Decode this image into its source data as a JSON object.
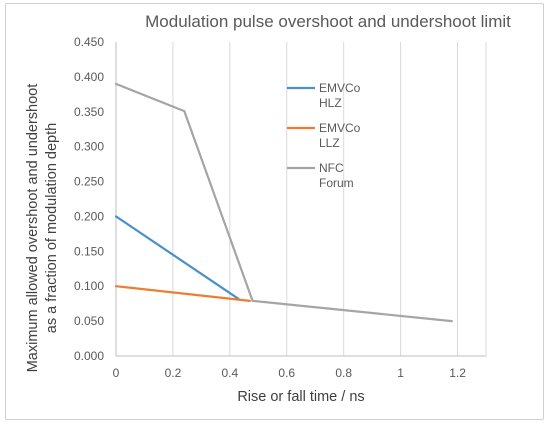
{
  "chart_data": {
    "type": "line",
    "title": "Modulation pulse overshoot and undershoot limit",
    "xlabel": "Rise or fall time / ns",
    "ylabel_lines": [
      "Maximum allowed overshoot and undershoot",
      "as a fraction of modulation depth"
    ],
    "xlim": [
      0,
      1.3
    ],
    "ylim": [
      0,
      0.45
    ],
    "x_ticks": [
      "0",
      "0.2",
      "0.4",
      "0.6",
      "0.8",
      "1",
      "1.2"
    ],
    "y_ticks": [
      "0.000",
      "0.050",
      "0.100",
      "0.150",
      "0.200",
      "0.250",
      "0.300",
      "0.350",
      "0.400",
      "0.450"
    ],
    "grid": "vertical",
    "legend_position": "right-inside",
    "series": [
      {
        "name": "EMVCo HLZ",
        "legend_lines": [
          "EMVCo",
          "HLZ"
        ],
        "color": "#4a90c8",
        "points": [
          [
            0,
            0.2
          ],
          [
            0.43,
            0.082
          ]
        ]
      },
      {
        "name": "EMVCo LLZ",
        "legend_lines": [
          "EMVCo",
          "LLZ"
        ],
        "color": "#ed7d31",
        "points": [
          [
            0,
            0.1
          ],
          [
            0.47,
            0.079
          ]
        ]
      },
      {
        "name": "NFC Forum",
        "legend_lines": [
          "NFC",
          "Forum"
        ],
        "color": "#a5a5a5",
        "points": [
          [
            0,
            0.39
          ],
          [
            0.24,
            0.351
          ],
          [
            0.48,
            0.079
          ],
          [
            1.18,
            0.05
          ]
        ]
      }
    ]
  }
}
